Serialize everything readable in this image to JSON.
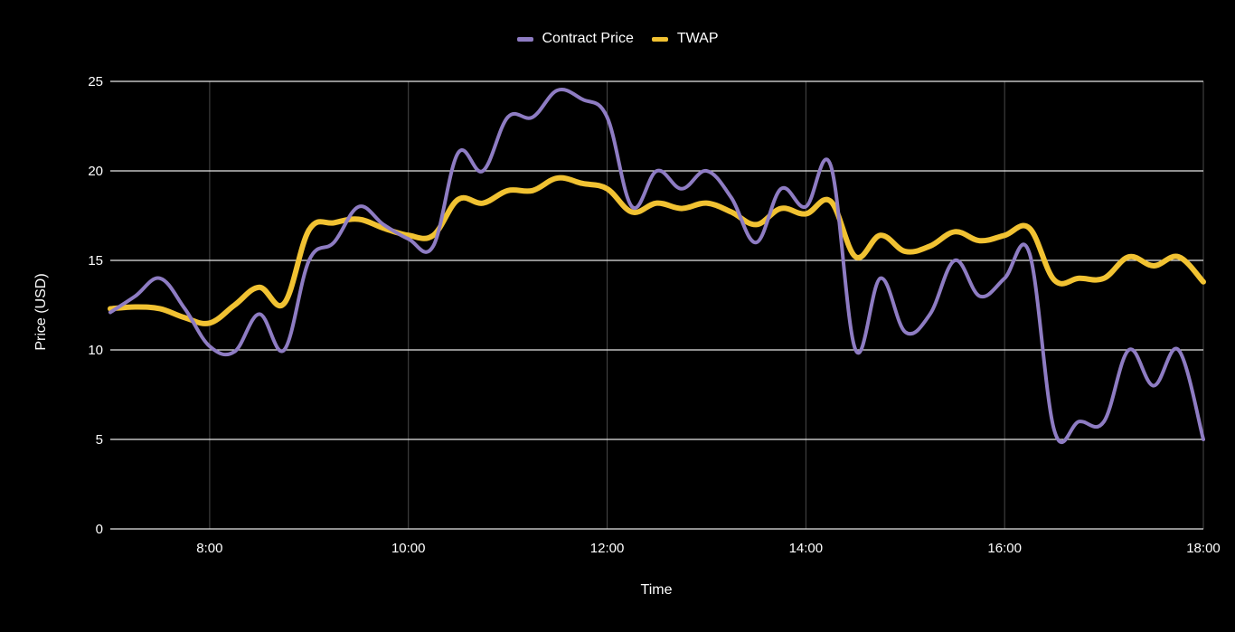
{
  "legend": {
    "items": [
      {
        "label": "Contract Price",
        "color": "#8e7cc3"
      },
      {
        "label": "TWAP",
        "color": "#f1c232"
      }
    ]
  },
  "axes": {
    "xlabel": "Time",
    "ylabel": "Price (USD)"
  },
  "chart_data": {
    "type": "line",
    "title": "",
    "xlabel": "Time",
    "ylabel": "Price (USD)",
    "ylim": [
      0,
      25
    ],
    "yticks": [
      0,
      5,
      10,
      15,
      20,
      25
    ],
    "xlim": [
      "7:00",
      "18:00"
    ],
    "xticks": [
      "8:00",
      "10:00",
      "12:00",
      "14:00",
      "16:00",
      "18:00"
    ],
    "grid": true,
    "legend_position": "top",
    "x": [
      "7:00",
      "7:15",
      "7:30",
      "7:45",
      "8:00",
      "8:15",
      "8:30",
      "8:45",
      "9:00",
      "9:15",
      "9:30",
      "9:45",
      "10:00",
      "10:15",
      "10:30",
      "10:45",
      "11:00",
      "11:15",
      "11:30",
      "11:45",
      "12:00",
      "12:15",
      "12:30",
      "12:45",
      "13:00",
      "13:15",
      "13:30",
      "13:45",
      "14:00",
      "14:15",
      "14:30",
      "14:45",
      "15:00",
      "15:15",
      "15:30",
      "15:45",
      "16:00",
      "16:15",
      "16:30",
      "16:45",
      "17:00",
      "17:15",
      "17:30",
      "17:45",
      "18:00"
    ],
    "series": [
      {
        "name": "Contract Price",
        "color": "#8e7cc3",
        "values": [
          12.1,
          13,
          14,
          12.3,
          10.2,
          9.9,
          12,
          10,
          15,
          16,
          18,
          17,
          16.2,
          15.8,
          21,
          20,
          23,
          23,
          24.5,
          24,
          23,
          18,
          20,
          19,
          20,
          18.5,
          16,
          19,
          18,
          20.3,
          10,
          14,
          11,
          12,
          15,
          13,
          14,
          15.4,
          5.5,
          6,
          6,
          10,
          8,
          10,
          5
        ]
      },
      {
        "name": "TWAP",
        "color": "#f1c232",
        "values": [
          12.3,
          12.4,
          12.3,
          11.8,
          11.5,
          12.5,
          13.5,
          12.6,
          16.7,
          17.1,
          17.3,
          16.8,
          16.4,
          16.4,
          18.4,
          18.2,
          18.9,
          18.9,
          19.6,
          19.3,
          19.0,
          17.7,
          18.2,
          17.9,
          18.2,
          17.7,
          17.0,
          17.9,
          17.6,
          18.3,
          15.2,
          16.4,
          15.5,
          15.8,
          16.6,
          16.1,
          16.4,
          16.8,
          13.9,
          14.0,
          14.0,
          15.2,
          14.7,
          15.2,
          13.8
        ]
      }
    ]
  }
}
